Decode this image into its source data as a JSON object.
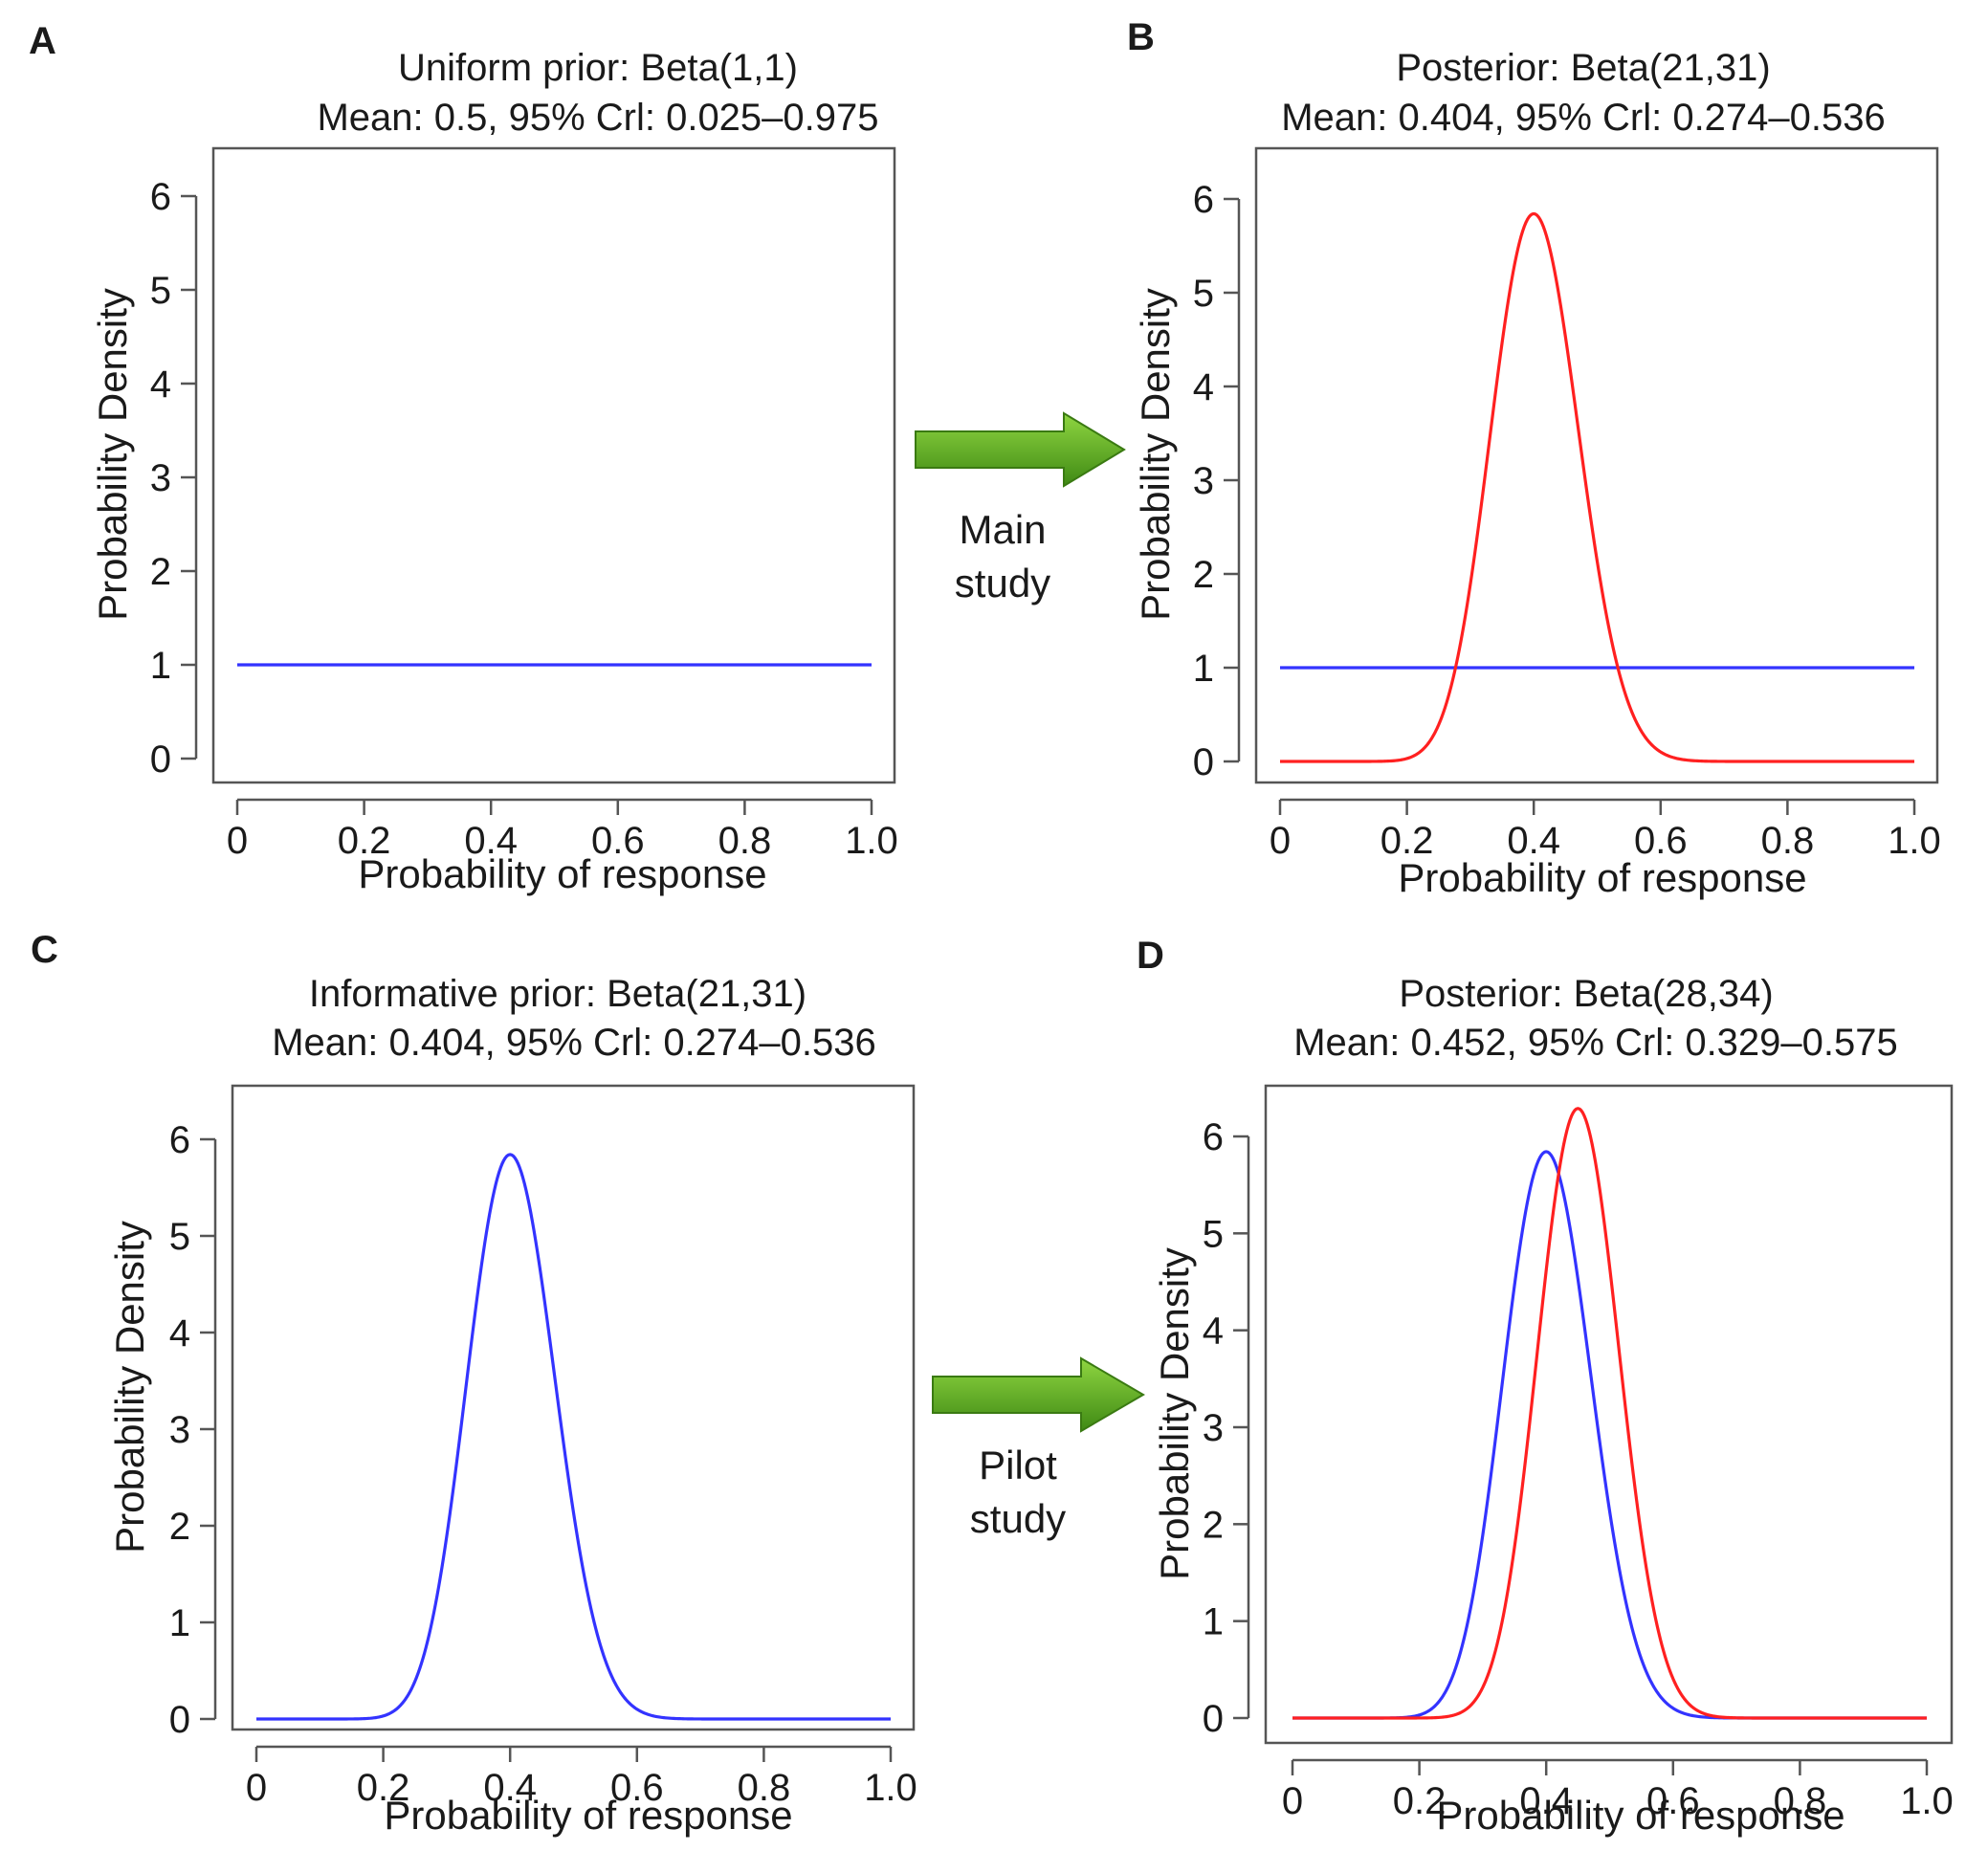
{
  "colors": {
    "prior": "#3333ff",
    "posterior": "#ff2020",
    "arrow_light": "#8fd641",
    "arrow_dark": "#3f8a14"
  },
  "arrows": [
    {
      "label_line1": "Main",
      "label_line2": "study"
    },
    {
      "label_line1": "Pilot",
      "label_line2": "study"
    }
  ],
  "chart_data": [
    {
      "panel": "A",
      "type": "line",
      "title_line1": "Uniform prior: Beta(1,1)",
      "title_line2": "Mean: 0.5, 95% Crl: 0.025–0.975",
      "xlabel": "Probability of response",
      "ylabel": "Probability Density",
      "xlim": [
        0,
        1
      ],
      "ylim": [
        0,
        6
      ],
      "xticks": [
        "0",
        "0.2",
        "0.4",
        "0.6",
        "0.8",
        "1.0"
      ],
      "yticks": [
        "0",
        "1",
        "2",
        "3",
        "4",
        "5",
        "6"
      ],
      "series": [
        {
          "distribution": "beta",
          "alpha": 1,
          "beta": 1,
          "color": "#3333ff"
        }
      ]
    },
    {
      "panel": "B",
      "type": "line",
      "title_line1": "Posterior: Beta(21,31)",
      "title_line2": "Mean: 0.404, 95% Crl: 0.274–0.536",
      "xlabel": "Probability of response",
      "ylabel": "Probability Density",
      "xlim": [
        0,
        1
      ],
      "ylim": [
        0,
        6
      ],
      "xticks": [
        "0",
        "0.2",
        "0.4",
        "0.6",
        "0.8",
        "1.0"
      ],
      "yticks": [
        "0",
        "1",
        "2",
        "3",
        "4",
        "5",
        "6"
      ],
      "series": [
        {
          "distribution": "beta",
          "alpha": 1,
          "beta": 1,
          "color": "#3333ff"
        },
        {
          "distribution": "beta",
          "alpha": 21,
          "beta": 31,
          "color": "#ff2020"
        }
      ]
    },
    {
      "panel": "C",
      "type": "line",
      "title_line1": "Informative prior: Beta(21,31)",
      "title_line2": "Mean: 0.404, 95% Crl: 0.274–0.536",
      "xlabel": "Probability of response",
      "ylabel": "Probability Density",
      "xlim": [
        0,
        1
      ],
      "ylim": [
        0,
        6
      ],
      "xticks": [
        "0",
        "0.2",
        "0.4",
        "0.6",
        "0.8",
        "1.0"
      ],
      "yticks": [
        "0",
        "1",
        "2",
        "3",
        "4",
        "5",
        "6"
      ],
      "series": [
        {
          "distribution": "beta",
          "alpha": 21,
          "beta": 31,
          "color": "#3333ff"
        }
      ]
    },
    {
      "panel": "D",
      "type": "line",
      "title_line1": "Posterior: Beta(28,34)",
      "title_line2": "Mean: 0.452, 95% Crl: 0.329–0.575",
      "xlabel": "Probability of response",
      "ylabel": "Probability Density",
      "xlim": [
        0,
        1
      ],
      "ylim": [
        0,
        6
      ],
      "xticks": [
        "0",
        "0.2",
        "0.4",
        "0.6",
        "0.8",
        "1.0"
      ],
      "yticks": [
        "0",
        "1",
        "2",
        "3",
        "4",
        "5",
        "6"
      ],
      "series": [
        {
          "distribution": "beta",
          "alpha": 21,
          "beta": 31,
          "color": "#3333ff"
        },
        {
          "distribution": "beta",
          "alpha": 28,
          "beta": 34,
          "color": "#ff2020"
        }
      ]
    }
  ]
}
